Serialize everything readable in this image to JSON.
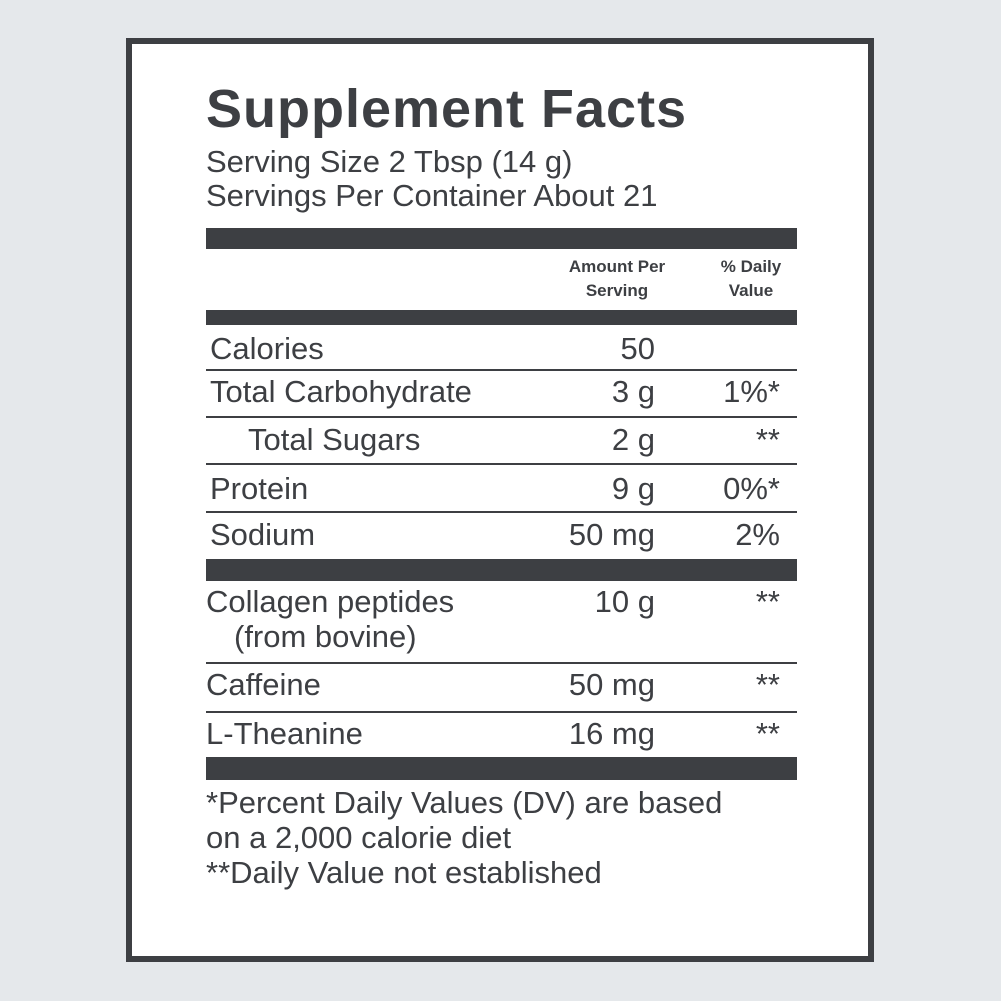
{
  "title": "Supplement Facts",
  "serving_size": "Serving Size 2 Tbsp (14 g)",
  "servings_per_container": "Servings Per Container About 21",
  "columns": {
    "amount_line1": "Amount Per",
    "amount_line2": "Serving",
    "dv_line1": "% Daily",
    "dv_line2": "Value"
  },
  "rows": [
    {
      "name": "Calories",
      "amount": "50",
      "dv": ""
    },
    {
      "name": "Total Carbohydrate",
      "amount": "3 g",
      "dv": "1%*"
    },
    {
      "name": "Total Sugars",
      "amount": "2 g",
      "dv": "**"
    },
    {
      "name": "Protein",
      "amount": "9 g",
      "dv": "0%*"
    },
    {
      "name": "Sodium",
      "amount": "50 mg",
      "dv": "2%"
    }
  ],
  "ingredients": [
    {
      "name": "Collagen peptides",
      "name_line2": "(from bovine)",
      "amount": "10 g",
      "dv": "**"
    },
    {
      "name": "Caffeine",
      "amount": "50 mg",
      "dv": "**"
    },
    {
      "name": "L-Theanine",
      "amount": "16 mg",
      "dv": "**"
    }
  ],
  "footnotes": [
    "*Percent Daily Values (DV) are based",
    "on a 2,000 calorie diet",
    "**Daily Value not established"
  ],
  "colors": {
    "ink": "#3d3f43",
    "background": "#e5e8eb",
    "panel": "#ffffff"
  }
}
